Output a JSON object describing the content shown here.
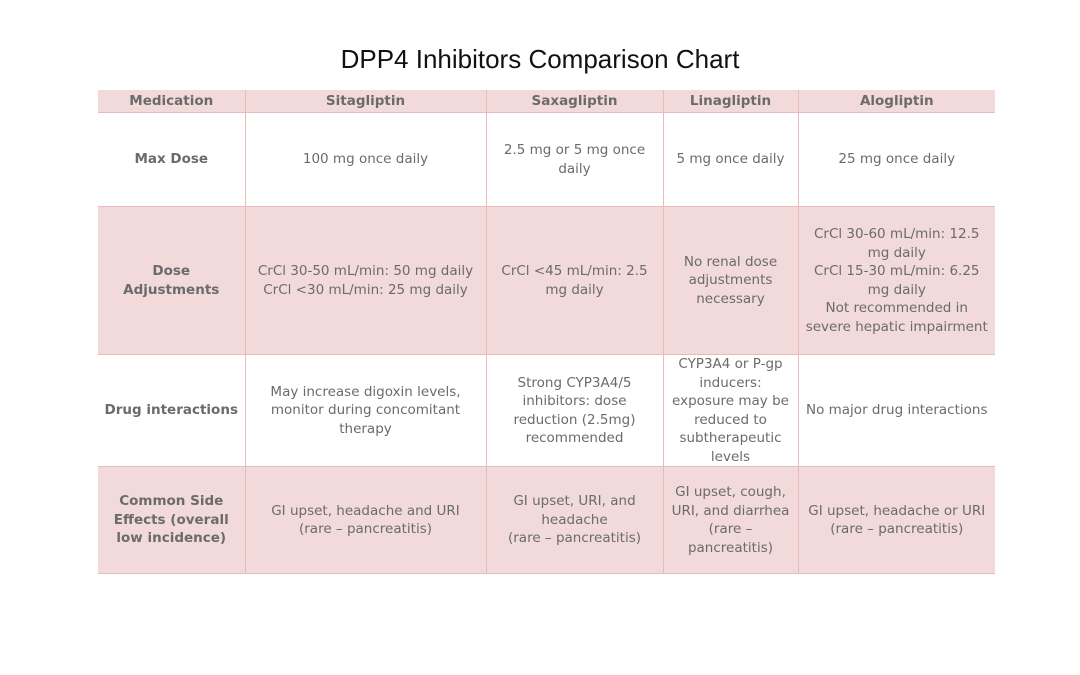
{
  "title": "DPP4 Inhibitors Comparison Chart",
  "columns": [
    "Medication",
    "Sitagliptin",
    "Saxagliptin",
    "Linagliptin",
    "Alogliptin"
  ],
  "rows": [
    {
      "label": "Max Dose",
      "cells": [
        [
          "100 mg once daily"
        ],
        [
          "2.5 mg or 5 mg once daily"
        ],
        [
          "5 mg once daily"
        ],
        [
          "25 mg once daily"
        ]
      ]
    },
    {
      "label": "Dose Adjustments",
      "cells": [
        [
          "CrCl 30-50 mL/min: 50 mg daily",
          "CrCl <30 mL/min: 25 mg daily"
        ],
        [
          "CrCl <45 mL/min: 2.5 mg daily"
        ],
        [
          "No renal dose adjustments necessary"
        ],
        [
          "CrCl 30-60 mL/min: 12.5 mg daily",
          "CrCl 15-30 mL/min: 6.25 mg daily",
          "Not recommended in severe hepatic impairment"
        ]
      ]
    },
    {
      "label": "Drug interactions",
      "cells": [
        [
          "May increase digoxin levels, monitor during concomitant therapy"
        ],
        [
          "Strong CYP3A4/5 inhibitors: dose reduction (2.5mg) recommended"
        ],
        [
          "CYP3A4 or P-gp inducers: exposure may be reduced to subtherapeutic levels"
        ],
        [
          "No major drug interactions"
        ]
      ]
    },
    {
      "label": "Common Side Effects (overall low incidence)",
      "cells": [
        [
          "GI upset, headache and URI",
          "(rare – pancreatitis)"
        ],
        [
          "GI upset, URI, and headache",
          "(rare – pancreatitis)"
        ],
        [
          "GI upset, cough, URI, and diarrhea",
          "(rare – pancreatitis)"
        ],
        [
          "GI upset, headache or URI",
          "(rare – pancreatitis)"
        ]
      ]
    }
  ]
}
